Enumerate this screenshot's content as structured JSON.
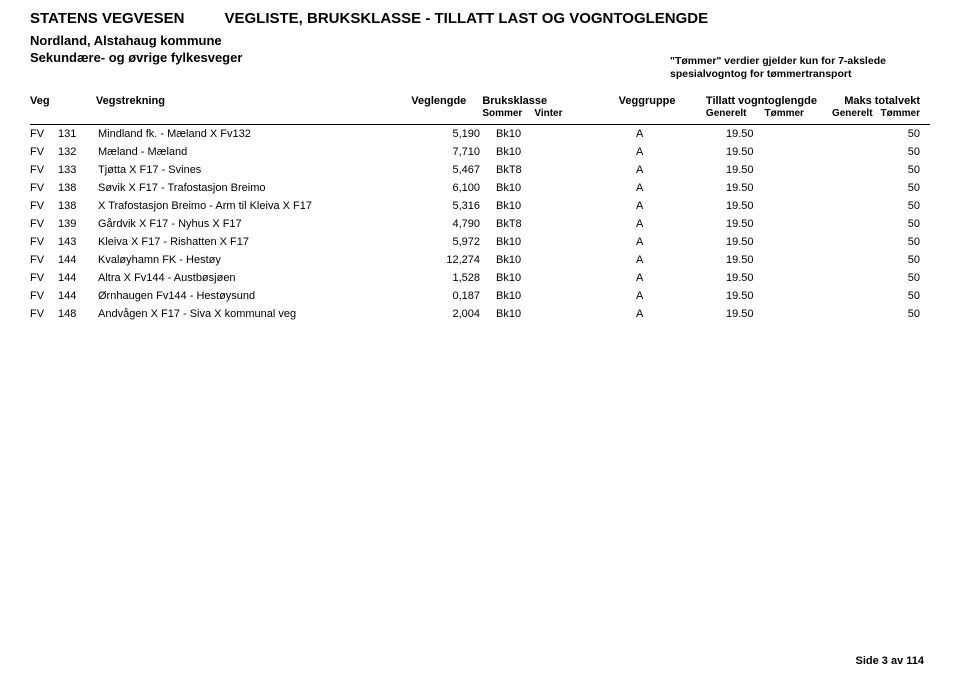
{
  "header": {
    "org": "STATENS VEGVESEN",
    "doc_title": "VEGLISTE, BRUKSKLASSE - TILLATT LAST OG VOGNTOGLENGDE",
    "region": "Nordland, Alstahaug kommune",
    "road_group": "Sekundære- og øvrige fylkesveger",
    "note_line1": "\"Tømmer\" verdier gjelder kun for 7-akslede",
    "note_line2": "spesialvogntog for tømmertransport"
  },
  "columns": {
    "veg": "Veg",
    "vegstrekning": "Vegstrekning",
    "veglengde": "Veglengde",
    "bruksklasse": "Bruksklasse",
    "bk_sub_sommer": "Sommer",
    "bk_sub_vinter": "Vinter",
    "veggruppe": "Veggruppe",
    "tillatt": "Tillatt vogntoglengde",
    "tillatt_sub_gen": "Generelt",
    "tillatt_sub_tom": "Tømmer",
    "maks": "Maks totalvekt",
    "maks_sub_gen": "Generelt",
    "maks_sub_tom": "Tømmer"
  },
  "rows": [
    {
      "vt": "FV",
      "vn": "131",
      "name": "Mindland fk. - Mæland X Fv132",
      "len": "5,190",
      "bk": "Bk10",
      "grp": "A",
      "till": "19.50",
      "maks": "50"
    },
    {
      "vt": "FV",
      "vn": "132",
      "name": "Mæland - Mæland",
      "len": "7,710",
      "bk": "Bk10",
      "grp": "A",
      "till": "19.50",
      "maks": "50"
    },
    {
      "vt": "FV",
      "vn": "133",
      "name": "Tjøtta X F17 - Svines",
      "len": "5,467",
      "bk": "BkT8",
      "grp": "A",
      "till": "19.50",
      "maks": "50"
    },
    {
      "vt": "FV",
      "vn": "138",
      "name": "Søvik X F17 - Trafostasjon Breimo",
      "len": "6,100",
      "bk": "Bk10",
      "grp": "A",
      "till": "19.50",
      "maks": "50"
    },
    {
      "vt": "FV",
      "vn": "138",
      "name": "X Trafostasjon Breimo - Arm til Kleiva X F17",
      "len": "5,316",
      "bk": "Bk10",
      "grp": "A",
      "till": "19.50",
      "maks": "50"
    },
    {
      "vt": "FV",
      "vn": "139",
      "name": "Gårdvik X F17 - Nyhus X F17",
      "len": "4,790",
      "bk": "BkT8",
      "grp": "A",
      "till": "19.50",
      "maks": "50"
    },
    {
      "vt": "FV",
      "vn": "143",
      "name": "Kleiva X F17 - Rishatten X F17",
      "len": "5,972",
      "bk": "Bk10",
      "grp": "A",
      "till": "19.50",
      "maks": "50"
    },
    {
      "vt": "FV",
      "vn": "144",
      "name": "Kvaløyhamn FK - Hestøy",
      "len": "12,274",
      "bk": "Bk10",
      "grp": "A",
      "till": "19.50",
      "maks": "50"
    },
    {
      "vt": "FV",
      "vn": "144",
      "name": "Altra X Fv144 - Austbøsjøen",
      "len": "1,528",
      "bk": "Bk10",
      "grp": "A",
      "till": "19.50",
      "maks": "50"
    },
    {
      "vt": "FV",
      "vn": "144",
      "name": "Ørnhaugen Fv144 - Hestøysund",
      "len": "0,187",
      "bk": "Bk10",
      "grp": "A",
      "till": "19.50",
      "maks": "50"
    },
    {
      "vt": "FV",
      "vn": "148",
      "name": "Andvågen X F17 - Siva X kommunal veg",
      "len": "2,004",
      "bk": "Bk10",
      "grp": "A",
      "till": "19.50",
      "maks": "50"
    }
  ],
  "footer": "Side 3 av 114"
}
